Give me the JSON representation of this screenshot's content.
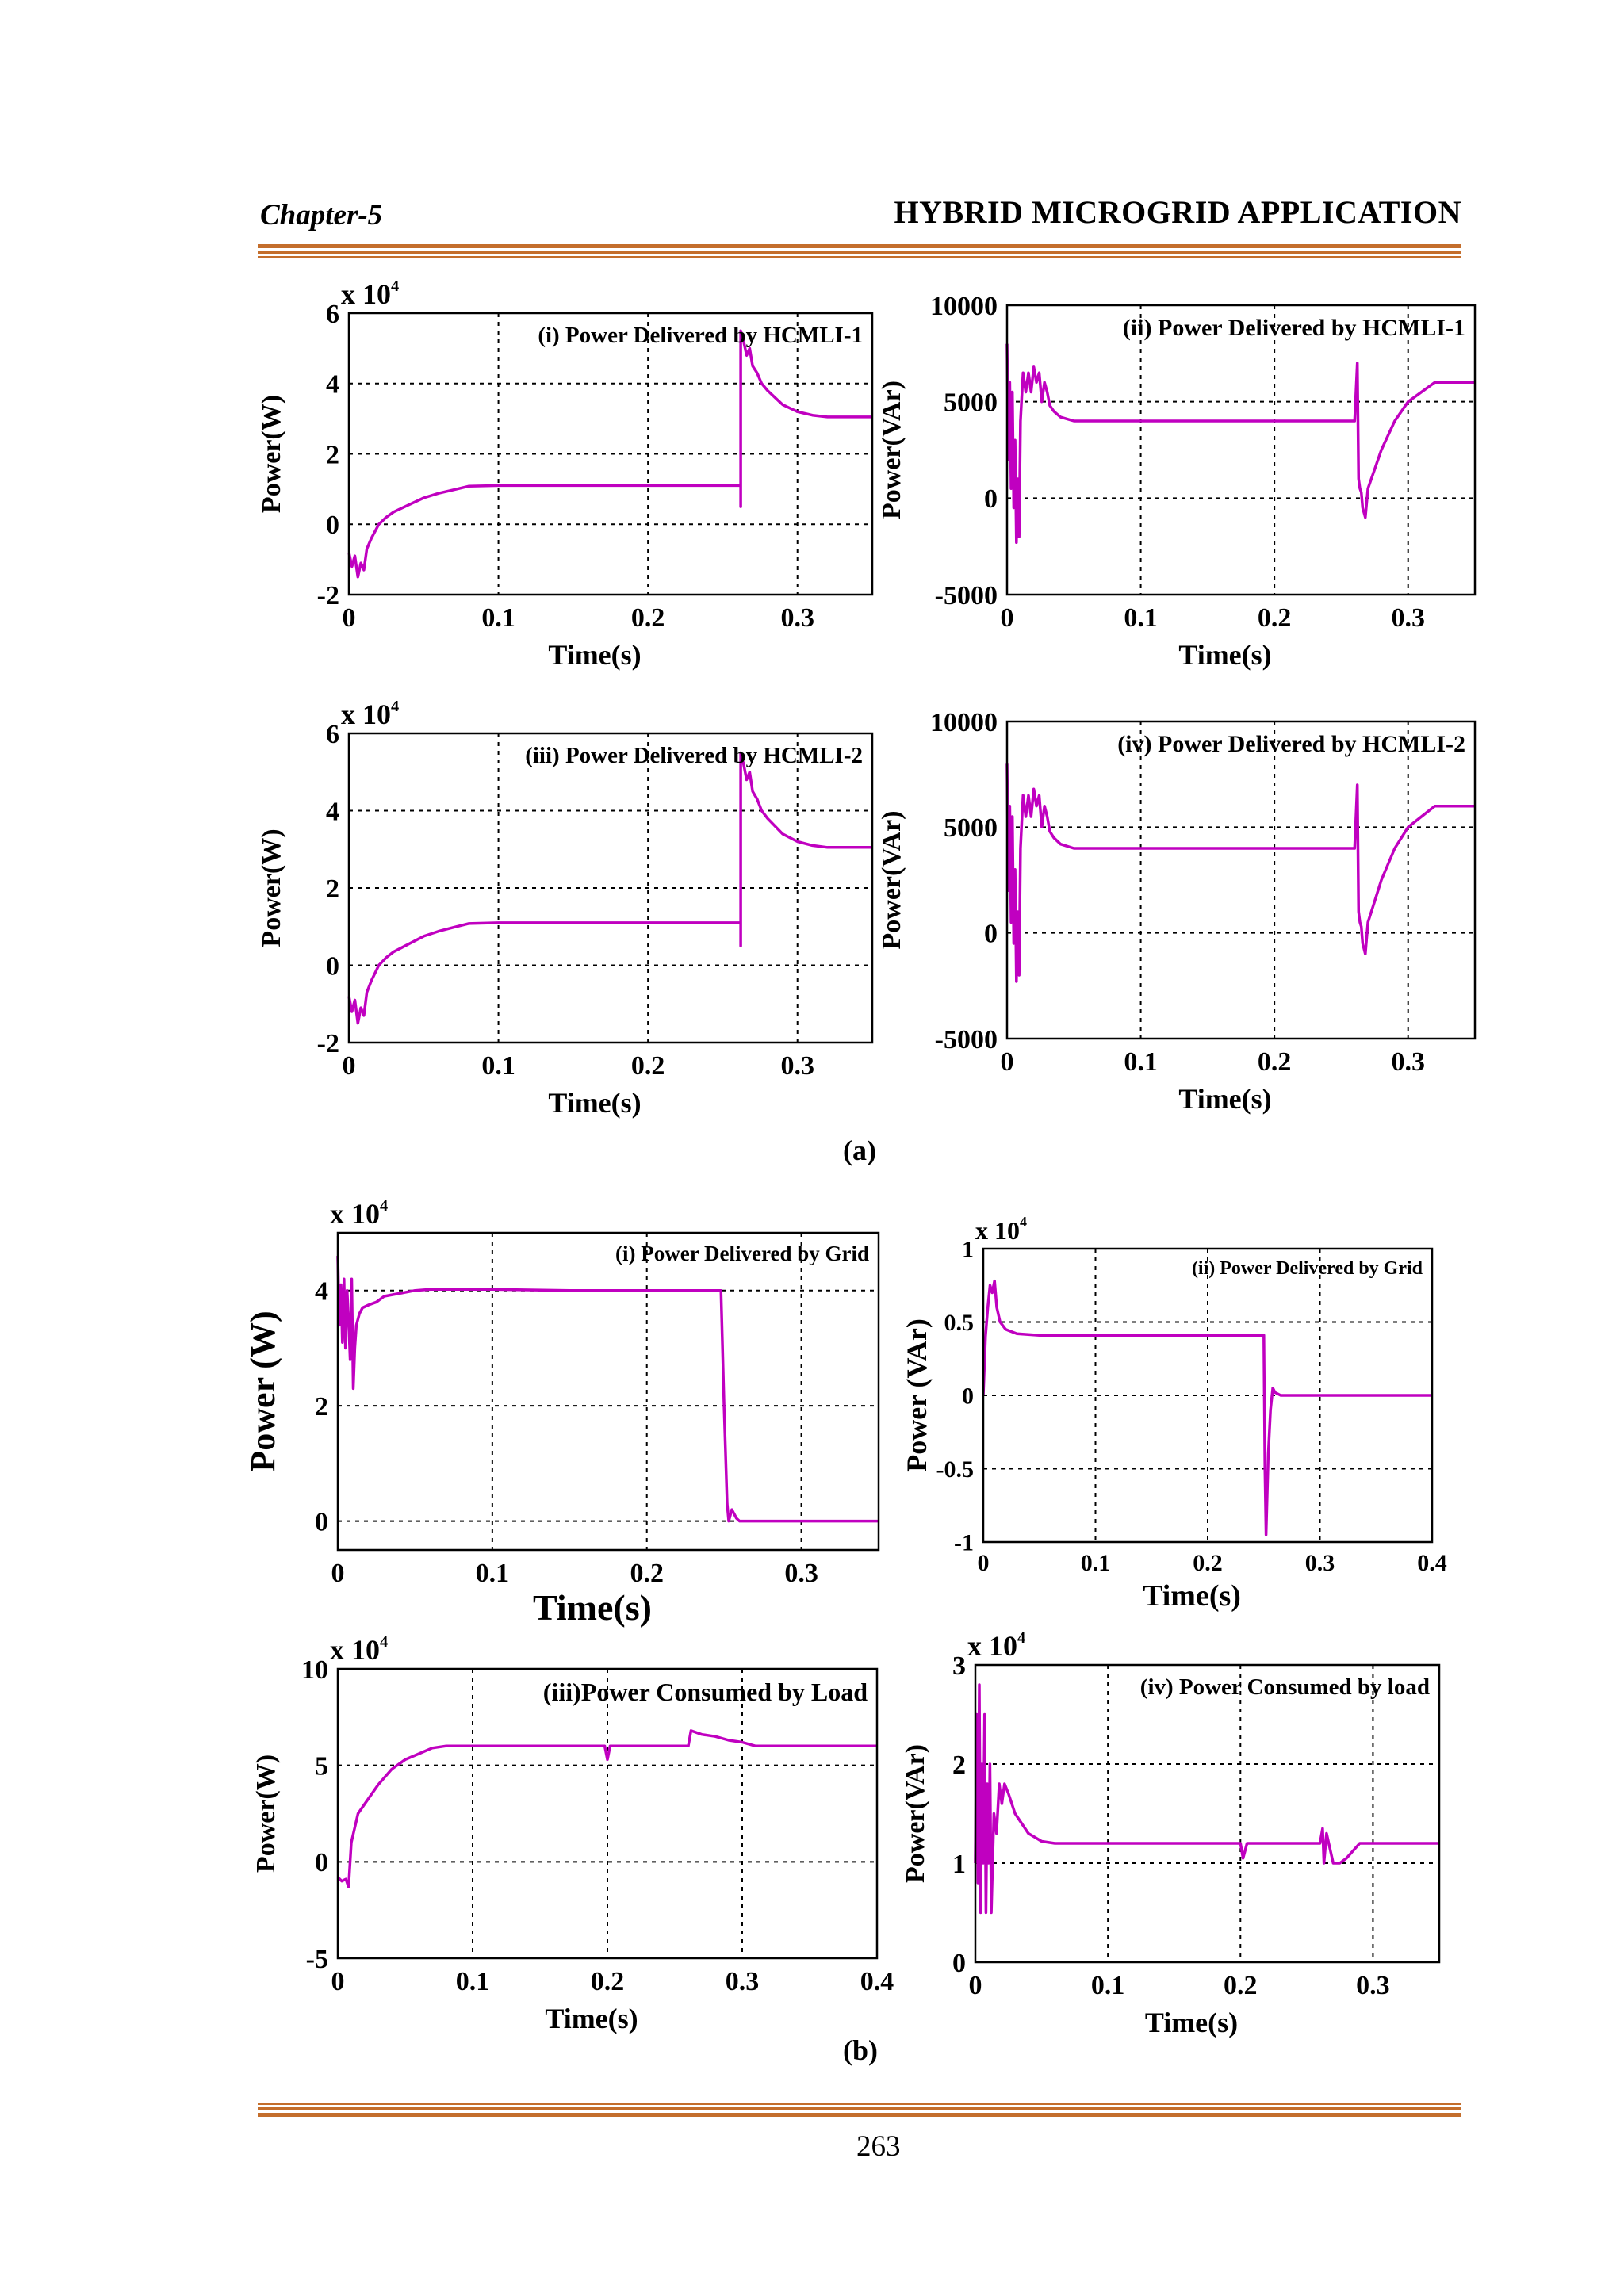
{
  "header": {
    "chapter": "Chapter-5",
    "title": "HYBRID MICROGRID APPLICATION"
  },
  "captions": {
    "a": "(a)",
    "b": "(b)"
  },
  "page_number": "263",
  "colors": {
    "trace": "#c000c0",
    "rule": "#c46e2c",
    "grid": "#000000"
  },
  "chart_data": [
    {
      "id": "a1",
      "type": "line",
      "title": "(i) Power Delivered by HCMLI-1",
      "xlabel": "Time(s)",
      "ylabel": "Power(W)",
      "multiplier": "x 10",
      "multiplier_exp": "4",
      "xlim": [
        0,
        0.35
      ],
      "ylim": [
        -2,
        6
      ],
      "xticks": [
        0,
        0.1,
        0.2,
        0.3
      ],
      "yticks": [
        -2,
        0,
        2,
        4,
        6
      ],
      "xtick_labels": [
        "0",
        "0.1",
        "0.2",
        "0.3"
      ],
      "ytick_labels": [
        "-2",
        "0",
        "2",
        "4",
        "6"
      ],
      "series": [
        {
          "x": [
            0,
            0.002,
            0.004,
            0.006,
            0.008,
            0.01,
            0.012,
            0.015,
            0.02,
            0.025,
            0.03,
            0.04,
            0.05,
            0.06,
            0.07,
            0.08,
            0.1,
            0.15,
            0.2,
            0.25,
            0.262,
            0.262,
            0.262,
            0.264,
            0.266,
            0.268,
            0.27,
            0.273,
            0.276,
            0.28,
            0.29,
            0.3,
            0.31,
            0.32,
            0.35
          ],
          "y": [
            -0.8,
            -1.2,
            -0.9,
            -1.5,
            -1.1,
            -1.3,
            -0.7,
            -0.4,
            0.0,
            0.2,
            0.35,
            0.55,
            0.75,
            0.88,
            0.98,
            1.08,
            1.1,
            1.1,
            1.1,
            1.1,
            1.1,
            0.5,
            5.5,
            5.2,
            4.8,
            5.0,
            4.5,
            4.3,
            4.0,
            3.8,
            3.4,
            3.2,
            3.1,
            3.05,
            3.05
          ]
        }
      ]
    },
    {
      "id": "a2",
      "type": "line",
      "title": "(ii) Power Delivered by HCMLI-1",
      "xlabel": "Time(s)",
      "ylabel": "Power(VAr)",
      "multiplier": "",
      "multiplier_exp": "",
      "xlim": [
        0,
        0.35
      ],
      "ylim": [
        -5000,
        10000
      ],
      "xticks": [
        0,
        0.1,
        0.2,
        0.3
      ],
      "yticks": [
        -5000,
        0,
        5000,
        10000
      ],
      "xtick_labels": [
        "0",
        "0.1",
        "0.2",
        "0.3"
      ],
      "ytick_labels": [
        "-5000",
        "0",
        "5000",
        "10000"
      ],
      "series": [
        {
          "x": [
            0,
            0.001,
            0.002,
            0.003,
            0.004,
            0.005,
            0.006,
            0.007,
            0.008,
            0.009,
            0.01,
            0.012,
            0.014,
            0.016,
            0.018,
            0.02,
            0.022,
            0.024,
            0.026,
            0.028,
            0.03,
            0.032,
            0.035,
            0.04,
            0.05,
            0.06,
            0.08,
            0.1,
            0.15,
            0.2,
            0.26,
            0.262,
            0.263,
            0.264,
            0.265,
            0.266,
            0.268,
            0.27,
            0.275,
            0.28,
            0.29,
            0.3,
            0.32,
            0.35
          ],
          "y": [
            8000,
            2000,
            6000,
            500,
            5500,
            -500,
            3000,
            -2300,
            1000,
            -2000,
            4000,
            6500,
            5500,
            6500,
            5500,
            6800,
            6000,
            6500,
            5000,
            6000,
            5500,
            4800,
            4500,
            4200,
            4000,
            4000,
            4000,
            4000,
            4000,
            4000,
            4000,
            7000,
            1000,
            500,
            300,
            -500,
            -1000,
            500,
            1500,
            2500,
            4000,
            5000,
            6000,
            6000
          ]
        }
      ]
    },
    {
      "id": "a3",
      "type": "line",
      "title": "(iii) Power Delivered by HCMLI-2",
      "xlabel": "Time(s)",
      "ylabel": "Power(W)",
      "multiplier": "x 10",
      "multiplier_exp": "4",
      "xlim": [
        0,
        0.35
      ],
      "ylim": [
        -2,
        6
      ],
      "xticks": [
        0,
        0.1,
        0.2,
        0.3
      ],
      "yticks": [
        -2,
        0,
        2,
        4,
        6
      ],
      "xtick_labels": [
        "0",
        "0.1",
        "0.2",
        "0.3"
      ],
      "ytick_labels": [
        "-2",
        "0",
        "2",
        "4",
        "6"
      ],
      "series": [
        {
          "x": [
            0,
            0.002,
            0.004,
            0.006,
            0.008,
            0.01,
            0.012,
            0.015,
            0.02,
            0.025,
            0.03,
            0.04,
            0.05,
            0.06,
            0.07,
            0.08,
            0.1,
            0.15,
            0.2,
            0.25,
            0.262,
            0.262,
            0.262,
            0.264,
            0.266,
            0.268,
            0.27,
            0.273,
            0.276,
            0.28,
            0.29,
            0.3,
            0.31,
            0.32,
            0.35
          ],
          "y": [
            -0.8,
            -1.2,
            -0.9,
            -1.5,
            -1.1,
            -1.3,
            -0.7,
            -0.4,
            0.0,
            0.2,
            0.35,
            0.55,
            0.75,
            0.88,
            0.98,
            1.08,
            1.1,
            1.1,
            1.1,
            1.1,
            1.1,
            0.5,
            5.5,
            5.2,
            4.8,
            5.0,
            4.5,
            4.3,
            4.0,
            3.8,
            3.4,
            3.2,
            3.1,
            3.05,
            3.05
          ]
        }
      ]
    },
    {
      "id": "a4",
      "type": "line",
      "title": "(iv) Power Delivered by HCMLI-2",
      "xlabel": "Time(s)",
      "ylabel": "Power(VAr)",
      "multiplier": "",
      "multiplier_exp": "",
      "xlim": [
        0,
        0.35
      ],
      "ylim": [
        -5000,
        10000
      ],
      "xticks": [
        0,
        0.1,
        0.2,
        0.3
      ],
      "yticks": [
        -5000,
        0,
        5000,
        10000
      ],
      "xtick_labels": [
        "0",
        "0.1",
        "0.2",
        "0.3"
      ],
      "ytick_labels": [
        "-5000",
        "0",
        "5000",
        "10000"
      ],
      "series": [
        {
          "x": [
            0,
            0.001,
            0.002,
            0.003,
            0.004,
            0.005,
            0.006,
            0.007,
            0.008,
            0.009,
            0.01,
            0.012,
            0.014,
            0.016,
            0.018,
            0.02,
            0.022,
            0.024,
            0.026,
            0.028,
            0.03,
            0.032,
            0.035,
            0.04,
            0.05,
            0.06,
            0.08,
            0.1,
            0.15,
            0.2,
            0.26,
            0.262,
            0.263,
            0.264,
            0.265,
            0.266,
            0.268,
            0.27,
            0.275,
            0.28,
            0.29,
            0.3,
            0.32,
            0.35
          ],
          "y": [
            8000,
            2000,
            6000,
            500,
            5500,
            -500,
            3000,
            -2300,
            1000,
            -2000,
            4000,
            6500,
            5500,
            6500,
            5500,
            6800,
            6000,
            6500,
            5000,
            6000,
            5500,
            4800,
            4500,
            4200,
            4000,
            4000,
            4000,
            4000,
            4000,
            4000,
            4000,
            7000,
            1000,
            500,
            300,
            -500,
            -1000,
            500,
            1500,
            2500,
            4000,
            5000,
            6000,
            6000
          ]
        }
      ]
    },
    {
      "id": "b1",
      "type": "line",
      "title": "(i) Power Delivered by Grid",
      "xlabel": "Time(s)",
      "ylabel": "Power (W)",
      "multiplier": "x 10",
      "multiplier_exp": "4",
      "xlim": [
        0,
        0.35
      ],
      "ylim": [
        -0.5,
        5
      ],
      "xticks": [
        0,
        0.1,
        0.2,
        0.3
      ],
      "yticks": [
        0,
        2,
        4
      ],
      "xtick_labels": [
        "0",
        "0.1",
        "0.2",
        "0.3"
      ],
      "ytick_labels": [
        "0",
        "2",
        "4"
      ],
      "series": [
        {
          "x": [
            0,
            0.001,
            0.002,
            0.003,
            0.004,
            0.005,
            0.006,
            0.007,
            0.008,
            0.009,
            0.01,
            0.011,
            0.012,
            0.014,
            0.016,
            0.02,
            0.025,
            0.03,
            0.04,
            0.05,
            0.06,
            0.08,
            0.1,
            0.15,
            0.2,
            0.248,
            0.249,
            0.25,
            0.252,
            0.253,
            0.255,
            0.258,
            0.26,
            0.35
          ],
          "y": [
            4.6,
            3.4,
            4.1,
            3.1,
            4.2,
            3.0,
            4.0,
            3.5,
            2.8,
            4.2,
            2.3,
            3.0,
            3.4,
            3.6,
            3.7,
            3.75,
            3.8,
            3.9,
            3.95,
            4.0,
            4.02,
            4.02,
            4.02,
            4.0,
            4.0,
            4.0,
            3.0,
            2.0,
            0.3,
            0.0,
            0.2,
            0.05,
            0.0,
            0.0
          ]
        }
      ]
    },
    {
      "id": "b2",
      "type": "line",
      "title": "(ii) Power Delivered by Grid",
      "xlabel": "Time(s)",
      "ylabel": "Power (VAr)",
      "multiplier": "x 10",
      "multiplier_exp": "4",
      "xlim": [
        0,
        0.4
      ],
      "ylim": [
        -1,
        1
      ],
      "xticks": [
        0,
        0.1,
        0.2,
        0.3,
        0.4
      ],
      "yticks": [
        -1,
        -0.5,
        0,
        0.5,
        1
      ],
      "xtick_labels": [
        "0",
        "0.1",
        "0.2",
        "0.3",
        "0.4"
      ],
      "ytick_labels": [
        "-1",
        "-0.5",
        "0",
        "0.5",
        "1"
      ],
      "series": [
        {
          "x": [
            0,
            0.002,
            0.004,
            0.006,
            0.008,
            0.01,
            0.012,
            0.015,
            0.02,
            0.03,
            0.05,
            0.1,
            0.15,
            0.2,
            0.25,
            0.251,
            0.252,
            0.254,
            0.256,
            0.258,
            0.26,
            0.265,
            0.27,
            0.4
          ],
          "y": [
            0.0,
            0.4,
            0.6,
            0.75,
            0.7,
            0.78,
            0.6,
            0.5,
            0.45,
            0.42,
            0.41,
            0.41,
            0.41,
            0.41,
            0.41,
            -0.5,
            -0.95,
            -0.4,
            -0.1,
            0.05,
            0.02,
            0.0,
            0.0,
            0.0
          ]
        }
      ]
    },
    {
      "id": "b3",
      "type": "line",
      "title": "(iii)Power Consumed by Load",
      "xlabel": "Time(s)",
      "ylabel": "Power(W)",
      "multiplier": "x 10",
      "multiplier_exp": "4",
      "xlim": [
        0,
        0.4
      ],
      "ylim": [
        -5,
        10
      ],
      "xticks": [
        0,
        0.1,
        0.2,
        0.3,
        0.4
      ],
      "yticks": [
        -5,
        0,
        5,
        10
      ],
      "xtick_labels": [
        "0",
        "0.1",
        "0.2",
        "0.3",
        "0.4"
      ],
      "ytick_labels": [
        "-5",
        "0",
        "5",
        "10"
      ],
      "series": [
        {
          "x": [
            0,
            0.003,
            0.006,
            0.008,
            0.01,
            0.015,
            0.02,
            0.03,
            0.04,
            0.05,
            0.06,
            0.07,
            0.08,
            0.1,
            0.15,
            0.198,
            0.2,
            0.202,
            0.204,
            0.26,
            0.262,
            0.27,
            0.28,
            0.29,
            0.3,
            0.31,
            0.4
          ],
          "y": [
            -0.8,
            -1.0,
            -0.9,
            -1.3,
            1.0,
            2.5,
            3.0,
            4.0,
            4.8,
            5.3,
            5.6,
            5.9,
            6.0,
            6.0,
            6.0,
            6.0,
            5.3,
            6.0,
            6.0,
            6.0,
            6.8,
            6.6,
            6.5,
            6.3,
            6.2,
            6.0,
            6.0
          ]
        }
      ]
    },
    {
      "id": "b4",
      "type": "line",
      "title": "(iv) Power Consumed by load",
      "xlabel": "Time(s)",
      "ylabel": "Power(VAr)",
      "multiplier": "x 10",
      "multiplier_exp": "4",
      "xlim": [
        0,
        0.35
      ],
      "ylim": [
        0,
        3
      ],
      "xticks": [
        0,
        0.1,
        0.2,
        0.3
      ],
      "yticks": [
        0,
        1,
        2,
        3
      ],
      "xtick_labels": [
        "0",
        "0.1",
        "0.2",
        "0.3"
      ],
      "ytick_labels": [
        "0",
        "1",
        "2",
        "3"
      ],
      "series": [
        {
          "x": [
            0,
            0.001,
            0.002,
            0.003,
            0.004,
            0.005,
            0.006,
            0.007,
            0.008,
            0.009,
            0.01,
            0.011,
            0.012,
            0.014,
            0.016,
            0.018,
            0.02,
            0.022,
            0.025,
            0.03,
            0.04,
            0.05,
            0.06,
            0.1,
            0.2,
            0.2,
            0.202,
            0.205,
            0.26,
            0.262,
            0.263,
            0.265,
            0.27,
            0.275,
            0.28,
            0.29,
            0.35
          ],
          "y": [
            1.0,
            2.5,
            0.8,
            2.8,
            0.5,
            2.0,
            1.0,
            2.5,
            0.5,
            1.8,
            1.0,
            2.0,
            0.5,
            1.5,
            1.3,
            1.8,
            1.6,
            1.8,
            1.7,
            1.5,
            1.3,
            1.22,
            1.2,
            1.2,
            1.2,
            1.2,
            1.05,
            1.2,
            1.2,
            1.35,
            1.0,
            1.3,
            1.0,
            1.0,
            1.05,
            1.2,
            1.2
          ]
        }
      ]
    }
  ]
}
